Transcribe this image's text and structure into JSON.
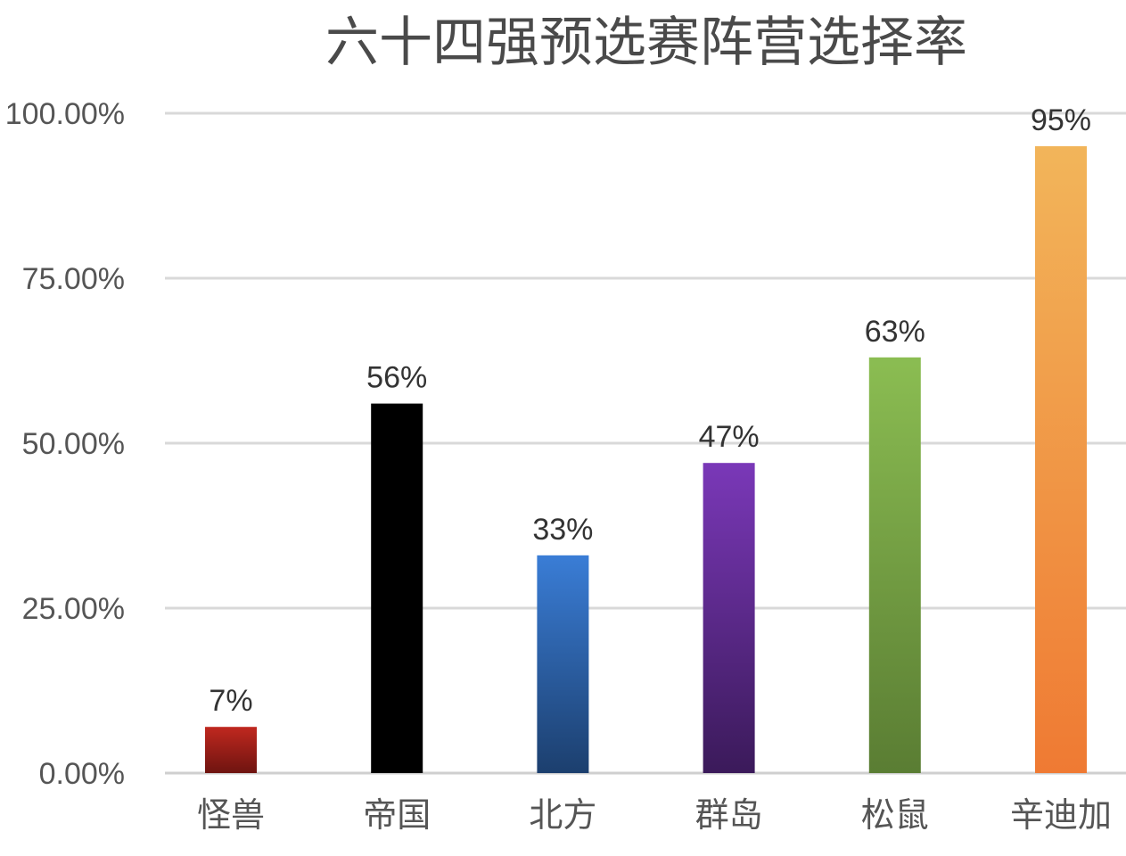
{
  "chart_data": {
    "type": "bar",
    "title": "六十四强预选赛阵营选择率",
    "xlabel": "",
    "ylabel": "",
    "categories": [
      "怪兽",
      "帝国",
      "北方",
      "群岛",
      "松鼠",
      "辛迪加"
    ],
    "values": [
      0.07,
      0.56,
      0.33,
      0.47,
      0.63,
      0.95
    ],
    "data_labels": [
      "7%",
      "56%",
      "33%",
      "47%",
      "63%",
      "95%"
    ],
    "ylim": [
      0,
      1
    ],
    "yticks": [
      0,
      0.25,
      0.5,
      0.75,
      1
    ],
    "ytick_labels": [
      "0.00%",
      "25.00%",
      "50.00%",
      "75.00%",
      "100.00%"
    ],
    "grid": true,
    "legend": "none",
    "bar_colors": [
      {
        "top": "#c0281f",
        "bottom": "#6e1410"
      },
      {
        "top": "#000000",
        "bottom": "#000000"
      },
      {
        "top": "#3a7dd6",
        "bottom": "#1c3f6e"
      },
      {
        "top": "#7a38b8",
        "bottom": "#3b1a5a"
      },
      {
        "top": "#8bbd52",
        "bottom": "#5a7d33"
      },
      {
        "top": "#f2b55a",
        "bottom": "#ef7a33"
      }
    ]
  }
}
